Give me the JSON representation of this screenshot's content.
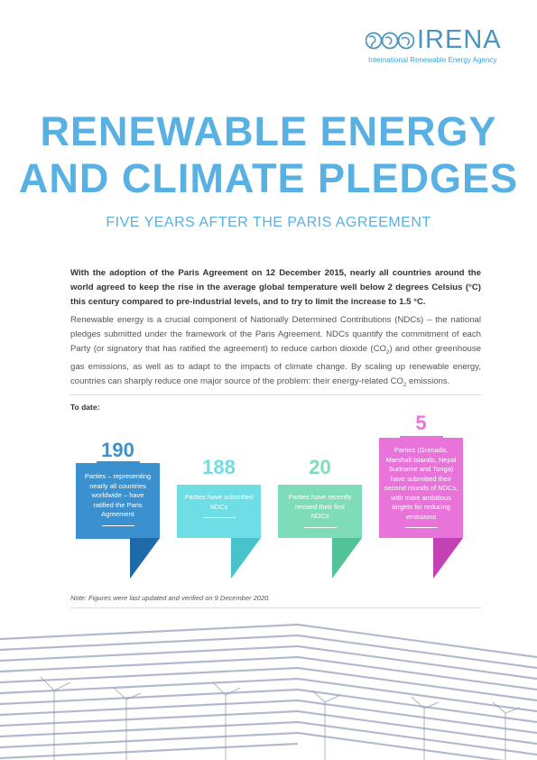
{
  "logo": {
    "name": "IRENA",
    "tagline": "International Renewable Energy Agency"
  },
  "title": {
    "line1": "RENEWABLE ENERGY",
    "line2": "AND CLIMATE PLEDGES"
  },
  "subtitle": "FIVE YEARS AFTER THE PARIS AGREEMENT",
  "intro_bold": "With the adoption of the Paris Agreement on 12 December 2015, nearly all countries around the world agreed to keep the rise in the average global temperature well below 2 degrees Celsius (°C) this century compared to pre-industrial levels, and to try to limit the increase to 1.5 °C.",
  "intro_body": {
    "part1": "Renewable energy is a crucial component of Nationally Determined Contributions (NDCs) – the national pledges submitted under the framework of the Paris Agreement. NDCs quantify the commitment of each Party (or signatory that has ratified the agreement) to reduce carbon dioxide (CO",
    "sub1": "2",
    "part2": ") and other greenhouse gas emissions, as well as to adapt to the impacts of climate change. By scaling up renewable energy, countries can sharply reduce one major source of the problem: their energy-related CO",
    "sub2": "2",
    "part3": " emissions."
  },
  "to_date_label": "To date:",
  "stats": [
    {
      "number": "190",
      "text": "Parties – representing nearly all countries worldwide – have ratified the Paris Agreement",
      "color": "#3b91cf",
      "fold": "#1f6aa8"
    },
    {
      "number": "188",
      "text": "Parties have submitted NDCs",
      "color": "#6fdde4",
      "fold": "#48c2cc"
    },
    {
      "number": "20",
      "text": "Parties have recently revised their first NDCs",
      "color": "#7fdcb8",
      "fold": "#52c297"
    },
    {
      "number": "5",
      "text": "Parties (Grenada, Marshall Islands, Nepal Suriname and Tonga) have submitted their second rounds of NDCs, with more ambitious targets for reducing emissions",
      "color": "#e874d9",
      "fold": "#c440b5"
    }
  ],
  "note": "Note: Figures were last updated and verified on 9 December 2020."
}
